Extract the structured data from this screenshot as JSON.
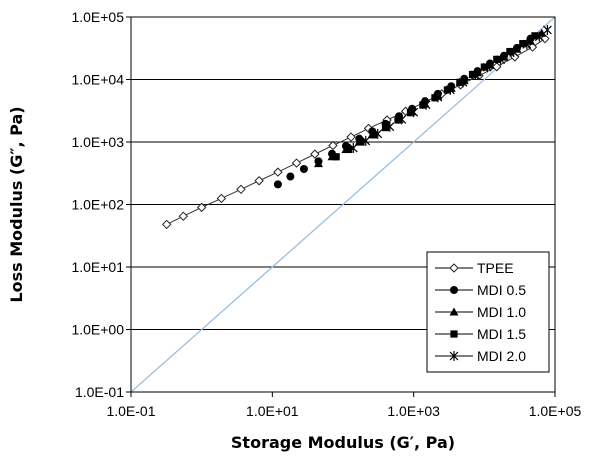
{
  "chart_data": {
    "type": "scatter",
    "title": "",
    "xlabel": "Storage Modulus (G′, Pa)",
    "ylabel": "Loss Modulus (G″, Pa)",
    "x_scale": "log",
    "y_scale": "log",
    "xlim": [
      0.1,
      100000
    ],
    "ylim": [
      0.1,
      100000
    ],
    "x_ticks": [
      0.1,
      10,
      1000,
      100000
    ],
    "x_tick_labels": [
      "1.0E-01",
      "1.0E+01",
      "1.0E+03",
      "1.0E+05"
    ],
    "y_ticks": [
      0.1,
      1,
      10,
      100,
      1000,
      10000,
      100000
    ],
    "y_tick_labels": [
      "1.0E-01",
      "1.0E+00",
      "1.0E+01",
      "1.0E+02",
      "1.0E+03",
      "1.0E+04",
      "1.0E+05"
    ],
    "grid": "horizontal",
    "legend_position": "bottom-right",
    "reference_line": {
      "type": "y = x",
      "color": "#9bbfe0"
    },
    "series": [
      {
        "name": "TPEE",
        "marker": "open-diamond",
        "line": true,
        "x": [
          0.32,
          0.55,
          1.0,
          1.9,
          3.6,
          6.5,
          12,
          22,
          40,
          72,
          130,
          230,
          420,
          770,
          1400,
          2500,
          4600,
          8400,
          15000,
          27000,
          48000,
          72000
        ],
        "y": [
          48,
          65,
          90,
          125,
          175,
          240,
          330,
          460,
          640,
          880,
          1200,
          1650,
          2250,
          3100,
          4300,
          5900,
          8200,
          11500,
          16000,
          23000,
          33000,
          45000
        ]
      },
      {
        "name": "MDI 0.5",
        "marker": "filled-circle",
        "line": false,
        "x": [
          12,
          18,
          28,
          45,
          70,
          110,
          170,
          260,
          400,
          620,
          950,
          1450,
          2200,
          3400,
          5200,
          8000,
          12000,
          19000,
          29000,
          45000
        ],
        "y": [
          210,
          280,
          370,
          490,
          650,
          860,
          1130,
          1480,
          1950,
          2580,
          3400,
          4500,
          5900,
          7800,
          10300,
          13600,
          18000,
          24000,
          32000,
          45000
        ]
      },
      {
        "name": "MDI 1.0",
        "marker": "filled-triangle",
        "line": false,
        "x": [
          45,
          70,
          110,
          170,
          260,
          400,
          620,
          950,
          1450,
          2200,
          3400,
          5200,
          8000,
          12000,
          19000,
          29000,
          45000,
          65000
        ],
        "y": [
          450,
          580,
          760,
          1000,
          1320,
          1740,
          2300,
          3050,
          4050,
          5400,
          7200,
          9600,
          12800,
          17000,
          22800,
          30500,
          41000,
          55000
        ]
      },
      {
        "name": "MDI 1.5",
        "marker": "filled-square",
        "line": false,
        "x": [
          80,
          120,
          180,
          270,
          400,
          600,
          900,
          1350,
          2000,
          3000,
          4500,
          6800,
          10000,
          15000,
          23000,
          35000,
          52000
        ],
        "y": [
          580,
          760,
          1000,
          1300,
          1700,
          2250,
          2950,
          3900,
          5100,
          6800,
          9000,
          12000,
          15800,
          21000,
          28000,
          37500,
          50000
        ]
      },
      {
        "name": "MDI 2.0",
        "marker": "asterisk",
        "line": false,
        "x": [
          140,
          210,
          310,
          460,
          680,
          1000,
          1500,
          2200,
          3300,
          5000,
          7500,
          11000,
          17000,
          26000,
          40000,
          60000,
          78000
        ],
        "y": [
          800,
          1040,
          1350,
          1760,
          2300,
          3000,
          3950,
          5200,
          6850,
          9000,
          11900,
          15700,
          20800,
          27500,
          36500,
          48500,
          62000
        ]
      }
    ]
  }
}
